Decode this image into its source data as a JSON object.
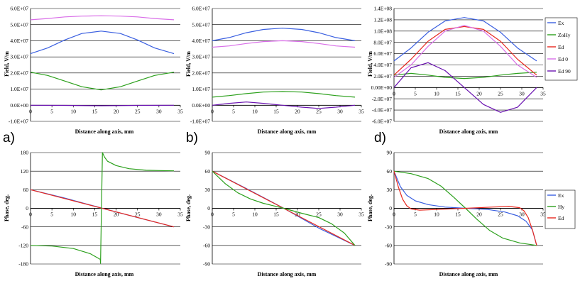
{
  "panel_letters": [
    "a)",
    "b)",
    "d)"
  ],
  "colors": {
    "blue": "#3a5fe0",
    "green": "#2ca01c",
    "red": "#e8281e",
    "violet": "#d96ee8",
    "purple": "#6a12b0",
    "grid": "#000000"
  },
  "chart_data": [
    {
      "type": "line",
      "id": "amp-a",
      "xlabel": "Distance along axis, mm",
      "ylabel": "Field, V/m",
      "xlim": [
        0,
        35
      ],
      "xticks": [
        0,
        5,
        10,
        15,
        20,
        25,
        30,
        35
      ],
      "xticklabels": [
        "0",
        "5",
        "10",
        "15",
        "20",
        "25",
        "30",
        "35"
      ],
      "ylim": [
        -10000000,
        60000000
      ],
      "yticks": [
        -10000000,
        0,
        10000000,
        20000000,
        30000000,
        40000000,
        50000000,
        60000000
      ],
      "yticklabels": [
        "-1.0E+07",
        "0.0E+00",
        "1.0E+07",
        "2.0E+07",
        "3.0E+07",
        "4.0E+07",
        "5.0E+07",
        "6.0E+07"
      ],
      "series": [
        {
          "name": "Ex",
          "color": "blue",
          "x": [
            0,
            4,
            8,
            12,
            16.5,
            21,
            25,
            29,
            33.5
          ],
          "y": [
            32000000,
            35500000,
            40500000,
            44500000,
            46000000,
            44500000,
            40500000,
            35500000,
            32000000
          ]
        },
        {
          "name": "ZoHy",
          "color": "green",
          "x": [
            0,
            4,
            8,
            12,
            16.5,
            21,
            25,
            29,
            33.5
          ],
          "y": [
            20500000,
            18500000,
            15000000,
            11500000,
            9500000,
            11500000,
            15000000,
            18500000,
            20500000
          ]
        },
        {
          "name": "Ed 0",
          "color": "violet",
          "x": [
            0,
            4,
            8,
            12,
            16.5,
            21,
            25,
            29,
            33.5
          ],
          "y": [
            53000000,
            53800000,
            54800000,
            55300000,
            55500000,
            55300000,
            54800000,
            53800000,
            53000000
          ]
        },
        {
          "name": "Ed 90",
          "color": "purple",
          "x": [
            0,
            8,
            16.5,
            25,
            33.5
          ],
          "y": [
            0,
            -100000,
            -300000,
            -100000,
            0
          ]
        }
      ]
    },
    {
      "type": "line",
      "id": "amp-b",
      "xlabel": "Distance along axis, mm",
      "ylabel": "Field, V/m",
      "xlim": [
        0,
        35
      ],
      "xticks": [
        0,
        5,
        10,
        15,
        20,
        25,
        30,
        35
      ],
      "xticklabels": [
        "0",
        "5",
        "10",
        "15",
        "20",
        "25",
        "30",
        "35"
      ],
      "ylim": [
        -10000000,
        60000000
      ],
      "yticks": [
        -10000000,
        0,
        10000000,
        20000000,
        30000000,
        40000000,
        50000000,
        60000000
      ],
      "yticklabels": [
        "-1.0E+07",
        "0.0E+00",
        "1.0E+07",
        "2.0E+07",
        "3.0E+07",
        "4.0E+07",
        "5.0E+07",
        "6.0E+07"
      ],
      "series": [
        {
          "name": "Ex",
          "color": "blue",
          "x": [
            0,
            4,
            8,
            12,
            16.5,
            21,
            25,
            29,
            33.5
          ],
          "y": [
            40000000,
            42000000,
            45000000,
            47000000,
            47800000,
            47000000,
            45000000,
            42000000,
            40000000
          ]
        },
        {
          "name": "Ed 0",
          "color": "violet",
          "x": [
            0,
            4,
            8,
            12,
            16.5,
            21,
            25,
            29,
            33.5
          ],
          "y": [
            36000000,
            36800000,
            38300000,
            39500000,
            40000000,
            39500000,
            38300000,
            36800000,
            36000000
          ]
        },
        {
          "name": "ZoHy",
          "color": "green",
          "x": [
            0,
            4,
            8,
            12,
            16.5,
            21,
            25,
            29,
            33.5
          ],
          "y": [
            5000000,
            6000000,
            7200000,
            8200000,
            8500000,
            8200000,
            7200000,
            6000000,
            5000000
          ]
        },
        {
          "name": "Ed 90",
          "color": "purple",
          "x": [
            0,
            4,
            8,
            12,
            16.5,
            21,
            25,
            29,
            33.5
          ],
          "y": [
            0,
            1200000,
            2000000,
            1200000,
            0,
            -1200000,
            -2000000,
            -1200000,
            0
          ]
        }
      ]
    },
    {
      "type": "line",
      "id": "amp-d",
      "xlabel": "Distance along axis, mm",
      "ylabel": "Field, V/m",
      "xlim": [
        0,
        35
      ],
      "xticks": [
        0,
        5,
        10,
        15,
        20,
        25,
        30,
        35
      ],
      "xticklabels": [
        "0",
        "5",
        "10",
        "15",
        "20",
        "25",
        "30",
        "35"
      ],
      "ylim": [
        -60000000,
        140000000
      ],
      "yticks": [
        -60000000,
        -40000000,
        -20000000,
        0,
        20000000,
        40000000,
        60000000,
        80000000,
        100000000,
        120000000,
        140000000
      ],
      "yticklabels": [
        "-6.0E+07",
        "-4.0E+07",
        "-2.0E+07",
        "0.00E+00",
        "2.0E+07",
        "4.0E+07",
        "6.0E+07",
        "8.0E+07",
        "1.0E+08",
        "1.2E+08",
        "1.4E+08"
      ],
      "legend": [
        "Ex",
        "ZoHy",
        "Ed",
        "Ed 0",
        "Ed 90"
      ],
      "series": [
        {
          "name": "Ex",
          "color": "blue",
          "x": [
            0,
            4,
            8,
            12,
            16.5,
            21,
            25,
            29,
            33.5
          ],
          "y": [
            47000000,
            70000000,
            98000000,
            118000000,
            124000000,
            118000000,
            98000000,
            70000000,
            47000000
          ]
        },
        {
          "name": "ZoHy",
          "color": "green",
          "x": [
            0,
            4,
            8,
            12,
            16.5,
            21,
            25,
            29,
            33.5
          ],
          "y": [
            22000000,
            25000000,
            22000000,
            18000000,
            16000000,
            18000000,
            22000000,
            25000000,
            27000000
          ]
        },
        {
          "name": "Ed",
          "color": "red",
          "x": [
            0,
            4,
            8,
            12,
            16.5,
            21,
            25,
            29,
            33.5
          ],
          "y": [
            22000000,
            50000000,
            82000000,
            103000000,
            108000000,
            103000000,
            82000000,
            50000000,
            22000000
          ]
        },
        {
          "name": "Ed 0",
          "color": "violet",
          "x": [
            0,
            4,
            8,
            12,
            16.5,
            21,
            25,
            29,
            33.5
          ],
          "y": [
            18000000,
            40000000,
            73000000,
            100000000,
            110000000,
            100000000,
            73000000,
            40000000,
            18000000
          ]
        },
        {
          "name": "Ed 90",
          "color": "purple",
          "x": [
            0,
            4,
            8,
            12,
            16.5,
            21,
            25,
            29,
            33.5
          ],
          "y": [
            0,
            35000000,
            44000000,
            30000000,
            0,
            -30000000,
            -44000000,
            -35000000,
            0
          ]
        }
      ]
    },
    {
      "type": "line",
      "id": "phase-a",
      "xlabel": "Distance along axis, mm",
      "ylabel": "Phase, deg.",
      "xlim": [
        0,
        35
      ],
      "xticks": [
        0,
        5,
        10,
        15,
        20,
        25,
        30,
        35
      ],
      "xticklabels": [
        "0",
        "5",
        "10",
        "15",
        "20",
        "25",
        "30",
        "35"
      ],
      "ylim": [
        -180,
        180
      ],
      "yticks": [
        -180,
        -120,
        -60,
        0,
        60,
        120,
        180
      ],
      "yticklabels": [
        "-180",
        "-120",
        "-60",
        "0",
        "60",
        "120",
        "180"
      ],
      "series": [
        {
          "name": "Ex",
          "color": "blue",
          "x": [
            0,
            8,
            16.8,
            25,
            33.5
          ],
          "y": [
            60,
            33,
            0,
            -30,
            -60
          ]
        },
        {
          "name": "Ed",
          "color": "red",
          "x": [
            0,
            33.5
          ],
          "y": [
            60,
            -60
          ]
        },
        {
          "name": "Hy",
          "color": "green",
          "x": [
            0,
            5,
            10,
            14,
            16.3,
            16.35,
            16.8,
            17.3,
            18,
            20,
            23,
            27,
            30,
            33.5
          ],
          "y": [
            -120,
            -122,
            -130,
            -147,
            -165,
            -178,
            180,
            165,
            152,
            138,
            128,
            123,
            122,
            121
          ]
        }
      ]
    },
    {
      "type": "line",
      "id": "phase-b",
      "xlabel": "Distance along axis, mm",
      "ylabel": "Phase, deg.",
      "xlim": [
        0,
        35
      ],
      "xticks": [
        0,
        5,
        10,
        15,
        20,
        25,
        30,
        35
      ],
      "xticklabels": [
        "0",
        "5",
        "10",
        "15",
        "20",
        "25",
        "30",
        "35"
      ],
      "ylim": [
        -90,
        90
      ],
      "yticks": [
        -90,
        -60,
        -30,
        0,
        30,
        60,
        90
      ],
      "yticklabels": [
        "-90",
        "-60",
        "-30",
        "0",
        "30",
        "60",
        "90"
      ],
      "series": [
        {
          "name": "Ex",
          "color": "blue",
          "x": [
            0,
            8,
            16.8,
            25,
            33.5
          ],
          "y": [
            60,
            32,
            0,
            -32,
            -60
          ]
        },
        {
          "name": "Ed",
          "color": "red",
          "x": [
            0,
            33.5
          ],
          "y": [
            60,
            -60
          ]
        },
        {
          "name": "Hy",
          "color": "green",
          "x": [
            0,
            3,
            6,
            9,
            12,
            16.8,
            21,
            25,
            28,
            31,
            33.5
          ],
          "y": [
            60,
            40,
            25,
            15,
            8,
            0,
            -8,
            -15,
            -25,
            -40,
            -60
          ]
        }
      ]
    },
    {
      "type": "line",
      "id": "phase-d",
      "xlabel": "Distance along axis, mm",
      "ylabel": "Phase, deg.",
      "xlim": [
        0,
        35
      ],
      "xticks": [
        0,
        5,
        10,
        15,
        20,
        25,
        30,
        35
      ],
      "xticklabels": [
        "0",
        "5",
        "10",
        "15",
        "20",
        "25",
        "30",
        "35"
      ],
      "ylim": [
        -90,
        90
      ],
      "yticks": [
        -90,
        -60,
        -30,
        0,
        30,
        60,
        90
      ],
      "yticklabels": [
        "-90",
        "-60",
        "-30",
        "0",
        "30",
        "60",
        "90"
      ],
      "legend": [
        "Ex",
        "Hy",
        "Ed"
      ],
      "series": [
        {
          "name": "Ex",
          "color": "blue",
          "x": [
            0,
            1.5,
            3,
            5,
            8,
            12,
            16.8,
            22,
            26,
            29,
            31,
            32.5,
            33.5
          ],
          "y": [
            60,
            35,
            21,
            12,
            6,
            2,
            0,
            -2,
            -6,
            -12,
            -21,
            -35,
            -60
          ]
        },
        {
          "name": "Hy",
          "color": "green",
          "x": [
            0,
            4,
            8,
            11,
            14,
            16.8,
            19.5,
            22.5,
            25.5,
            29.5,
            33.5
          ],
          "y": [
            60,
            56,
            48,
            36,
            18,
            0,
            -18,
            -36,
            -48,
            -56,
            -60
          ]
        },
        {
          "name": "Ed",
          "color": "red",
          "x": [
            0,
            1,
            2,
            3,
            4,
            6,
            10,
            16.8,
            23,
            27,
            29.5,
            30.5,
            31.5,
            32.5,
            33.5
          ],
          "y": [
            60,
            35,
            15,
            4,
            -1,
            -3,
            -2,
            0,
            2,
            3,
            1,
            -4,
            -15,
            -35,
            -60
          ]
        }
      ]
    }
  ]
}
